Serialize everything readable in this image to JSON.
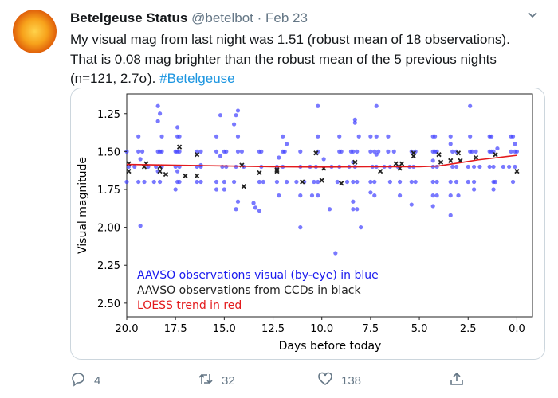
{
  "tweet": {
    "author_name": "Betelgeuse Status",
    "handle": "@betelbot",
    "separator": "·",
    "date": "Feb 23",
    "text_line1": "My visual mag from last night was 1.51 (robust mean of 18 observations).",
    "text_line2": "That is 0.08 mag brighter than the robust mean of the 5 previous nights",
    "text_line3": "(n=121, 2.7σ).",
    "hashtag": "#Betelgeuse"
  },
  "actions": {
    "reply_count": "4",
    "retweet_count": "32",
    "like_count": "138"
  },
  "icons": [
    "avatar-sun",
    "chevron-down-icon",
    "reply-icon",
    "retweet-icon",
    "like-icon",
    "share-icon"
  ],
  "chart_data": {
    "type": "scatter",
    "xlabel": "Days before today",
    "ylabel": "Visual magnitude",
    "xlim": [
      20,
      -0.8
    ],
    "ylim": [
      2.59,
      1.12
    ],
    "y_inverted": true,
    "x_ticks": [
      "20.0",
      "17.5",
      "15.0",
      "12.5",
      "10.0",
      "7.5",
      "5.0",
      "2.5",
      "0.0"
    ],
    "x_tick_values": [
      20,
      17.5,
      15,
      12.5,
      10,
      7.5,
      5,
      2.5,
      0
    ],
    "y_ticks": [
      "1.25",
      "1.50",
      "1.75",
      "2.00",
      "2.25",
      "2.50"
    ],
    "y_tick_values": [
      1.25,
      1.5,
      1.75,
      2.0,
      2.25,
      2.5
    ],
    "grid": false,
    "legend_placement": "bottom-left",
    "legend": [
      {
        "text": "AAVSO observations visual (by-eye) in blue",
        "color": "#1a1aee"
      },
      {
        "text": "AAVSO observations from CCDs in black",
        "color": "#222222"
      },
      {
        "text": "LOESS trend in red",
        "color": "#e31a1c"
      }
    ],
    "series": [
      {
        "kind": "visual",
        "color": "#4040ff",
        "marker": "circle",
        "bands": {
          "1.4": [
            19.4,
            18.2,
            17.4,
            17.3,
            15.4,
            14.3,
            12.0,
            10.2,
            9.1,
            8.1,
            7.5,
            7.2,
            6.6,
            4.3,
            4.2,
            3.4,
            2.4,
            1.4,
            1.3,
            0.3,
            0.2
          ],
          "1.5": [
            20.0,
            19.4,
            19.2,
            18.4,
            18.3,
            18.2,
            17.5,
            17.4,
            17.3,
            16.4,
            16.2,
            15.4,
            15.0,
            14.9,
            14.3,
            14.1,
            13.2,
            13.1,
            12.0,
            11.9,
            11.1,
            10.2,
            9.1,
            9.0,
            8.5,
            8.4,
            8.2,
            7.5,
            7.3,
            7.1,
            6.6,
            6.3,
            5.4,
            5.2,
            4.3,
            4.2,
            4.1,
            3.3,
            3.1,
            2.4,
            2.3,
            2.1,
            1.4,
            1.3,
            1.2,
            0.3,
            0.1,
            0.0
          ],
          "1.6": [
            19.9,
            19.6,
            18.9,
            18.5,
            18.2,
            17.5,
            17.3,
            16.4,
            16.2,
            15.1,
            14.9,
            14.4,
            14.0,
            13.1,
            12.3,
            12.0,
            11.1,
            10.6,
            10.3,
            9.5,
            9.1,
            8.6,
            8.3,
            7.4,
            7.2,
            6.8,
            6.5,
            6.1,
            5.5,
            5.3,
            4.3,
            4.1,
            3.3,
            3.1,
            2.5,
            2.2,
            1.9,
            1.4,
            1.2,
            0.7,
            0.4,
            0.1
          ],
          "1.7": [
            20.0,
            19.4,
            19.1,
            18.6,
            18.3,
            17.4,
            17.3,
            16.4,
            16.2,
            15.4,
            15.0,
            14.5,
            13.2,
            13.0,
            12.3,
            11.8,
            11.3,
            10.9,
            10.4,
            10.2,
            9.2,
            8.7,
            8.4,
            8.2,
            7.5,
            7.3,
            6.5,
            6.0,
            5.4,
            5.2,
            4.3,
            4.1,
            3.4,
            3.1,
            2.5,
            2.2,
            1.2,
            1.1,
            0.2
          ]
        },
        "points": [
          [
            18.4,
            1.2
          ],
          [
            18.3,
            1.25
          ],
          [
            18.4,
            1.3
          ],
          [
            17.4,
            1.34
          ],
          [
            15.2,
            1.26
          ],
          [
            14.3,
            1.23
          ],
          [
            14.4,
            1.26
          ],
          [
            14.5,
            1.32
          ],
          [
            10.2,
            1.2
          ],
          [
            7.2,
            1.2
          ],
          [
            8.3,
            1.29
          ],
          [
            8.3,
            1.31
          ],
          [
            2.4,
            1.2
          ],
          [
            19.3,
            1.99
          ],
          [
            11.1,
            2.0
          ],
          [
            8.0,
            2.0
          ],
          [
            9.3,
            2.17
          ],
          [
            3.4,
            1.92
          ],
          [
            14.4,
            1.88
          ],
          [
            14.3,
            1.83
          ],
          [
            13.5,
            1.84
          ],
          [
            13.4,
            1.87
          ],
          [
            13.2,
            1.89
          ],
          [
            9.6,
            1.88
          ],
          [
            8.4,
            1.88
          ],
          [
            8.2,
            1.88
          ],
          [
            8.4,
            1.83
          ],
          [
            5.4,
            1.85
          ],
          [
            4.3,
            1.86
          ],
          [
            7.5,
            1.77
          ],
          [
            7.3,
            1.79
          ],
          [
            4.3,
            1.79
          ],
          [
            4.1,
            1.79
          ],
          [
            6.0,
            1.79
          ],
          [
            11.1,
            1.79
          ],
          [
            10.5,
            1.79
          ],
          [
            10.2,
            1.79
          ],
          [
            12.2,
            1.79
          ],
          [
            17.5,
            1.75
          ],
          [
            15.4,
            1.75
          ],
          [
            15.0,
            1.75
          ],
          [
            3.4,
            1.79
          ],
          [
            3.0,
            1.79
          ],
          [
            1.2,
            1.75
          ],
          [
            2.2,
            1.75
          ],
          [
            19.3,
            1.55
          ],
          [
            17.4,
            1.63
          ],
          [
            16.2,
            1.59
          ],
          [
            15.2,
            1.53
          ],
          [
            12.2,
            1.54
          ],
          [
            11.8,
            1.45
          ],
          [
            8.4,
            1.57
          ],
          [
            7.2,
            1.52
          ],
          [
            4.3,
            1.56
          ],
          [
            1.0,
            1.48
          ],
          [
            3.4,
            1.45
          ],
          [
            0.1,
            1.45
          ],
          [
            18.4,
            1.63
          ],
          [
            9.9,
            1.55
          ]
        ]
      },
      {
        "kind": "ccd",
        "color": "#222222",
        "marker": "x",
        "points": [
          [
            19.9,
            1.63
          ],
          [
            19.9,
            1.58
          ],
          [
            19.1,
            1.6
          ],
          [
            19.0,
            1.58
          ],
          [
            18.3,
            1.6
          ],
          [
            18.3,
            1.63
          ],
          [
            18.0,
            1.65
          ],
          [
            17.3,
            1.47
          ],
          [
            17.0,
            1.66
          ],
          [
            16.4,
            1.52
          ],
          [
            16.4,
            1.66
          ],
          [
            14.1,
            1.59
          ],
          [
            14.0,
            1.73
          ],
          [
            13.2,
            1.64
          ],
          [
            12.3,
            1.63
          ],
          [
            12.3,
            1.62
          ],
          [
            11.0,
            1.7
          ],
          [
            10.3,
            1.51
          ],
          [
            10.0,
            1.69
          ],
          [
            9.9,
            1.61
          ],
          [
            9.0,
            1.71
          ],
          [
            8.3,
            1.57
          ],
          [
            7.0,
            1.63
          ],
          [
            6.2,
            1.58
          ],
          [
            5.9,
            1.58
          ],
          [
            6.0,
            1.61
          ],
          [
            5.3,
            1.53
          ],
          [
            5.3,
            1.51
          ],
          [
            4.0,
            1.52
          ],
          [
            3.9,
            1.57
          ],
          [
            3.4,
            1.56
          ],
          [
            3.0,
            1.51
          ],
          [
            2.9,
            1.56
          ],
          [
            2.1,
            1.54
          ],
          [
            1.1,
            1.52
          ],
          [
            0.0,
            1.63
          ]
        ]
      },
      {
        "kind": "loess",
        "color": "#e31a1c",
        "marker": "line",
        "points": [
          [
            20,
            1.585
          ],
          [
            17.5,
            1.59
          ],
          [
            15,
            1.595
          ],
          [
            12.5,
            1.6
          ],
          [
            10,
            1.602
          ],
          [
            7.5,
            1.6
          ],
          [
            5,
            1.6
          ],
          [
            4,
            1.595
          ],
          [
            3,
            1.575
          ],
          [
            2,
            1.555
          ],
          [
            1,
            1.54
          ],
          [
            0,
            1.525
          ]
        ]
      }
    ]
  }
}
